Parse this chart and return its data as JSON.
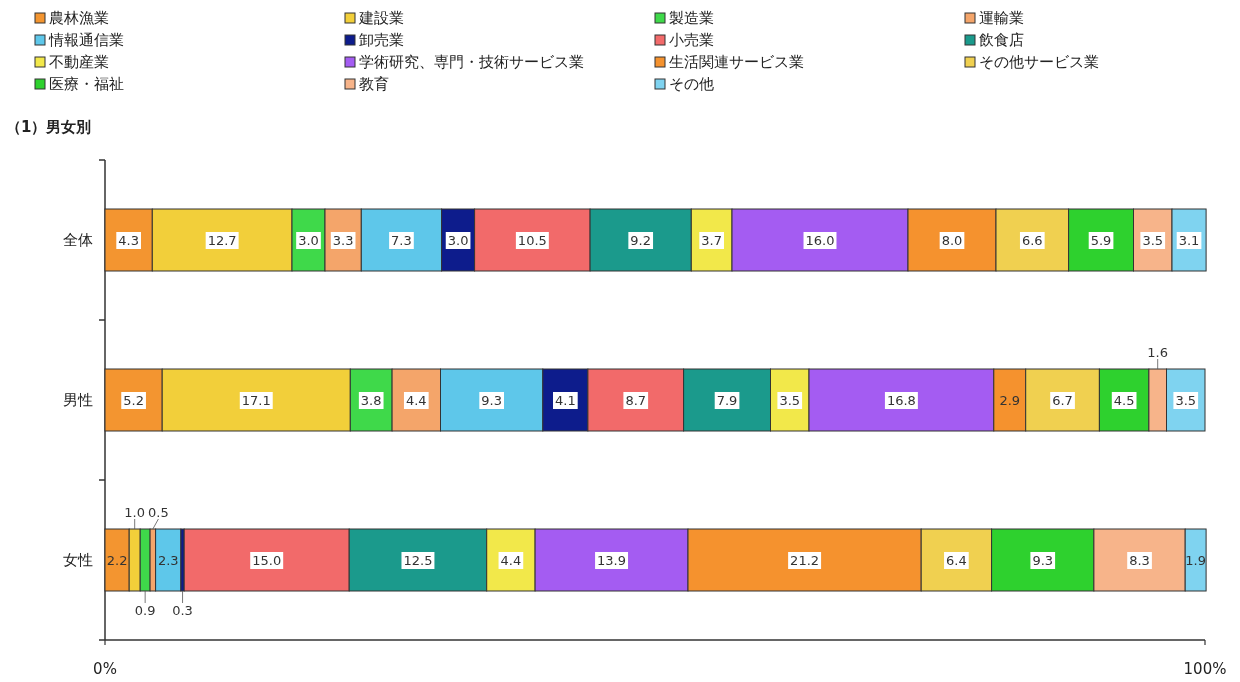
{
  "chart_data": {
    "type": "bar",
    "orientation": "horizontal",
    "stacked": true,
    "title": "（1）男女別",
    "categories": [
      "全体",
      "男性",
      "女性"
    ],
    "xlim": [
      0,
      100
    ],
    "xticks": [
      {
        "value": 0,
        "label": "0%"
      },
      {
        "value": 100,
        "label": "100%"
      }
    ],
    "legend": "top",
    "grid": false,
    "series": [
      {
        "name": "農林漁業",
        "color": "#f39530",
        "values": [
          4.3,
          5.2,
          2.2
        ],
        "value_labels": [
          "4.3",
          "5.2",
          "2.2"
        ]
      },
      {
        "name": "建設業",
        "color": "#f2cf3a",
        "values": [
          12.7,
          17.1,
          1.0
        ],
        "value_labels": [
          "12.7",
          "17.1",
          "1.0"
        ]
      },
      {
        "name": "製造業",
        "color": "#3fd94a",
        "values": [
          3.0,
          3.8,
          0.9
        ],
        "value_labels": [
          "3.0",
          "3.8",
          "0.9"
        ]
      },
      {
        "name": "運輸業",
        "color": "#f4a56a",
        "values": [
          3.3,
          4.4,
          0.5
        ],
        "value_labels": [
          "3.3",
          "4.4",
          "0.5"
        ]
      },
      {
        "name": "情報通信業",
        "color": "#5ec7ea",
        "values": [
          7.3,
          9.3,
          2.3
        ],
        "value_labels": [
          "7.3",
          "9.3",
          "2.3"
        ]
      },
      {
        "name": "卸売業",
        "color": "#0d1c8c",
        "values": [
          3.0,
          4.1,
          0.3
        ],
        "value_labels": [
          "3.0",
          "4.1",
          "0.3"
        ]
      },
      {
        "name": "小売業",
        "color": "#f26a6a",
        "values": [
          10.5,
          8.7,
          15.0
        ],
        "value_labels": [
          "10.5",
          "8.7",
          "15.0"
        ]
      },
      {
        "name": "飲食店",
        "color": "#1b9a8c",
        "values": [
          9.2,
          7.9,
          12.5
        ],
        "value_labels": [
          "9.2",
          "7.9",
          "12.5"
        ]
      },
      {
        "name": "不動産業",
        "color": "#f2e84a",
        "values": [
          3.7,
          3.5,
          4.4
        ],
        "value_labels": [
          "3.7",
          "3.5",
          "4.4"
        ]
      },
      {
        "name": "学術研究、専門・技術サービス業",
        "color": "#a45cf2",
        "values": [
          16.0,
          16.8,
          13.9
        ],
        "value_labels": [
          "16.0",
          "16.8",
          "13.9"
        ]
      },
      {
        "name": "生活関連サービス業",
        "color": "#f5922e",
        "values": [
          8.0,
          2.9,
          21.2
        ],
        "value_labels": [
          "8.0",
          "2.9",
          "21.2"
        ]
      },
      {
        "name": "その他サービス業",
        "color": "#f0d050",
        "values": [
          6.6,
          6.7,
          6.4
        ],
        "value_labels": [
          "6.6",
          "6.7",
          "6.4"
        ]
      },
      {
        "name": "医療・福祉",
        "color": "#2ed12e",
        "values": [
          5.9,
          4.5,
          9.3
        ],
        "value_labels": [
          "5.9",
          "4.5",
          "9.3"
        ]
      },
      {
        "name": "教育",
        "color": "#f7b48a",
        "values": [
          3.5,
          1.6,
          8.3
        ],
        "value_labels": [
          "3.5",
          "1.6",
          "8.3"
        ]
      },
      {
        "name": "その他",
        "color": "#7fd3f0",
        "values": [
          3.1,
          3.5,
          1.9
        ],
        "value_labels": [
          "3.1",
          "3.5",
          "1.9"
        ]
      }
    ]
  }
}
